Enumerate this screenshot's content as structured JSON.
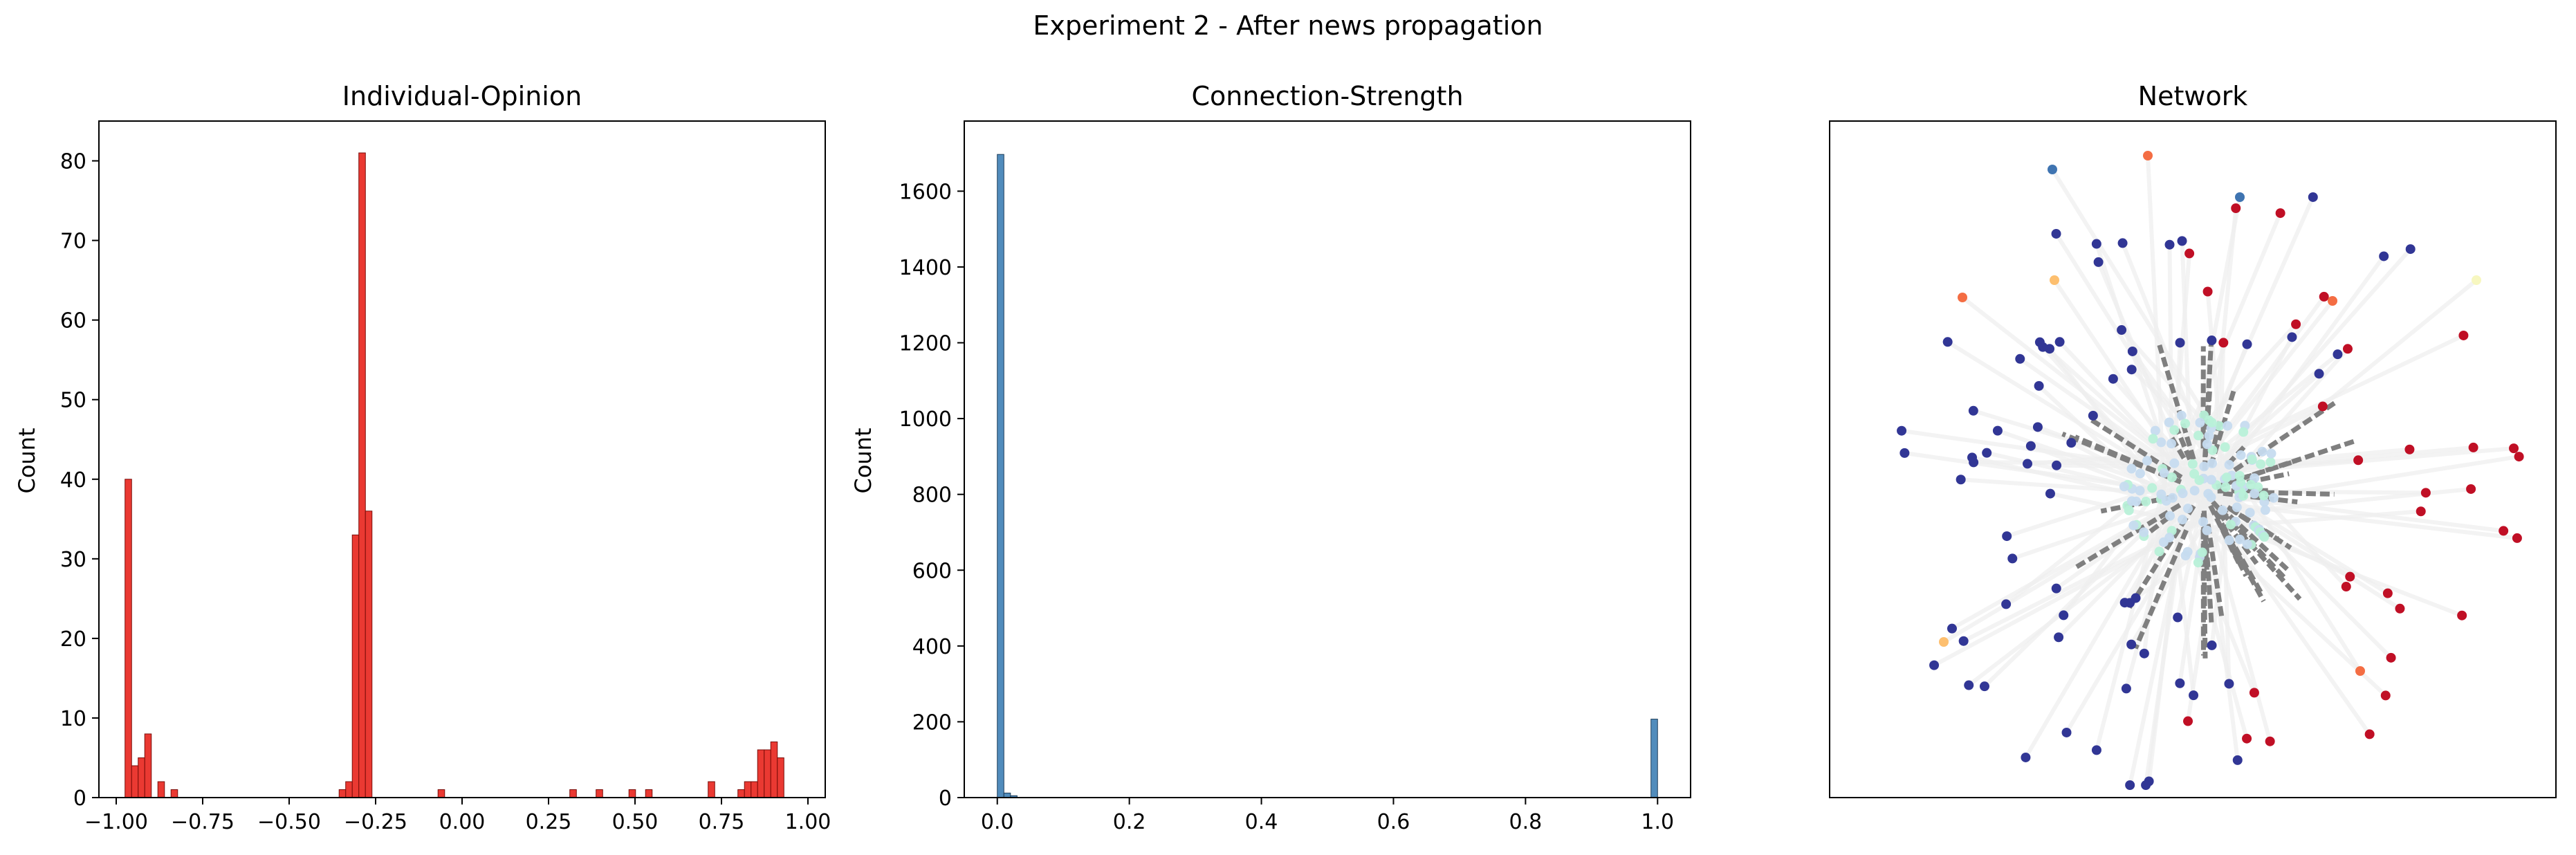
{
  "figure": {
    "suptitle": "Experiment 2 - After news propagation"
  },
  "chart_data": [
    {
      "type": "bar",
      "title": "Individual-Opinion",
      "xlabel": "",
      "ylabel": "Count",
      "xlim": [
        -1.05,
        1.05
      ],
      "ylim": [
        0,
        85
      ],
      "xticks": [
        -1.0,
        -0.75,
        -0.5,
        -0.25,
        0.0,
        0.25,
        0.5,
        0.75,
        1.0
      ],
      "xtick_labels": [
        "−1.00",
        "−0.75",
        "−0.50",
        "−0.25",
        "0.00",
        "0.25",
        "0.50",
        "0.75",
        "1.00"
      ],
      "yticks": [
        0,
        10,
        20,
        30,
        40,
        50,
        60,
        70,
        80
      ],
      "ytick_labels": [
        "0",
        "10",
        "20",
        "30",
        "40",
        "50",
        "60",
        "70",
        "80"
      ],
      "bin_width": 0.0191,
      "bins": [
        {
          "x": -0.965,
          "count": 40
        },
        {
          "x": -0.946,
          "count": 4
        },
        {
          "x": -0.927,
          "count": 5
        },
        {
          "x": -0.908,
          "count": 8
        },
        {
          "x": -0.87,
          "count": 2
        },
        {
          "x": -0.832,
          "count": 1
        },
        {
          "x": -0.346,
          "count": 1
        },
        {
          "x": -0.327,
          "count": 2
        },
        {
          "x": -0.308,
          "count": 33
        },
        {
          "x": -0.289,
          "count": 81
        },
        {
          "x": -0.27,
          "count": 36
        },
        {
          "x": -0.06,
          "count": 1
        },
        {
          "x": 0.321,
          "count": 1
        },
        {
          "x": 0.397,
          "count": 1
        },
        {
          "x": 0.492,
          "count": 1
        },
        {
          "x": 0.54,
          "count": 1
        },
        {
          "x": 0.721,
          "count": 2
        },
        {
          "x": 0.807,
          "count": 1
        },
        {
          "x": 0.826,
          "count": 2
        },
        {
          "x": 0.845,
          "count": 2
        },
        {
          "x": 0.864,
          "count": 6
        },
        {
          "x": 0.883,
          "count": 6
        },
        {
          "x": 0.902,
          "count": 7
        },
        {
          "x": 0.921,
          "count": 5
        }
      ],
      "color": "#e8231c",
      "edge_color": "#7a0f0b"
    },
    {
      "type": "bar",
      "title": "Connection-Strength",
      "xlabel": "",
      "ylabel": "Count",
      "xlim": [
        -0.05,
        1.05
      ],
      "ylim": [
        0,
        1785
      ],
      "xticks": [
        0.0,
        0.2,
        0.4,
        0.6,
        0.8,
        1.0
      ],
      "xtick_labels": [
        "0.0",
        "0.2",
        "0.4",
        "0.6",
        "0.8",
        "1.0"
      ],
      "yticks": [
        0,
        200,
        400,
        600,
        800,
        1000,
        1200,
        1400,
        1600
      ],
      "ytick_labels": [
        "0",
        "200",
        "400",
        "600",
        "800",
        "1000",
        "1200",
        "1400",
        "1600"
      ],
      "bin_width": 0.01,
      "bins": [
        {
          "x": 0.005,
          "count": 1697
        },
        {
          "x": 0.015,
          "count": 12
        },
        {
          "x": 0.025,
          "count": 5
        },
        {
          "x": 0.995,
          "count": 207
        }
      ],
      "color": "#3e7fb5",
      "edge_color": "#1f3f5a"
    },
    {
      "type": "network",
      "title": "Network",
      "node_colors": {
        "negative": "#313695",
        "negative_mid": "#3f74b1",
        "neutral_light": "#c6dbef",
        "neutral_mint": "#b8f0d8",
        "positive_mild": "#fdbf6f",
        "positive_orange": "#f46d43",
        "positive": "#c00f25",
        "pale": "#f7f7c0"
      },
      "edge_color_faint": "#f0f0f0",
      "edge_color_strong": "#7f7f7f"
    }
  ]
}
